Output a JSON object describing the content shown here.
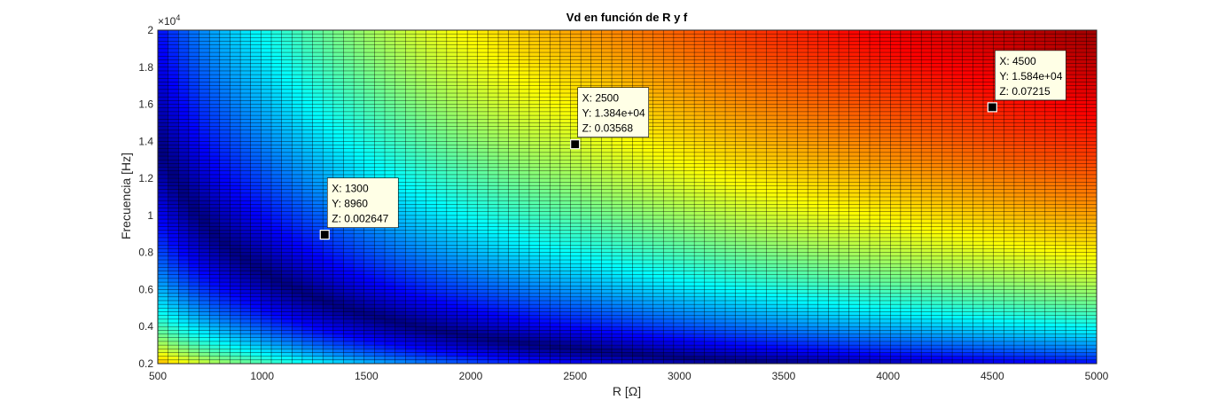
{
  "chart_data": {
    "type": "heatmap",
    "title": "Vd en función de R y f",
    "xlabel": "R [Ω]",
    "ylabel": "Frecuencia [Hz]",
    "xlim": [
      500,
      5000
    ],
    "ylim": [
      2000,
      20000
    ],
    "x_ticks": [
      "500",
      "1000",
      "1500",
      "2000",
      "2500",
      "3000",
      "3500",
      "4000",
      "4500",
      "5000"
    ],
    "y_ticks": [
      "0.2",
      "0.4",
      "0.6",
      "0.8",
      "1",
      "1.2",
      "1.4",
      "1.6",
      "1.8",
      "2"
    ],
    "y_exponent": "×10",
    "y_exponent_power": "4",
    "colormap": "jet",
    "grid": "mesh edges shown (black)",
    "datatips": [
      {
        "x": 1300,
        "y": 8960,
        "z": 0.002647,
        "lines": [
          "X: 1300",
          "Y: 8960",
          "Z: 0.002647"
        ]
      },
      {
        "x": 2500,
        "y": 13840,
        "z": 0.03568,
        "lines": [
          "X: 2500",
          "Y: 1.384e+04",
          "Z: 0.03568"
        ]
      },
      {
        "x": 4500,
        "y": 15840,
        "z": 0.07215,
        "lines": [
          "X: 4500",
          "Y: 1.584e+04",
          "Z: 0.07215"
        ]
      }
    ]
  }
}
